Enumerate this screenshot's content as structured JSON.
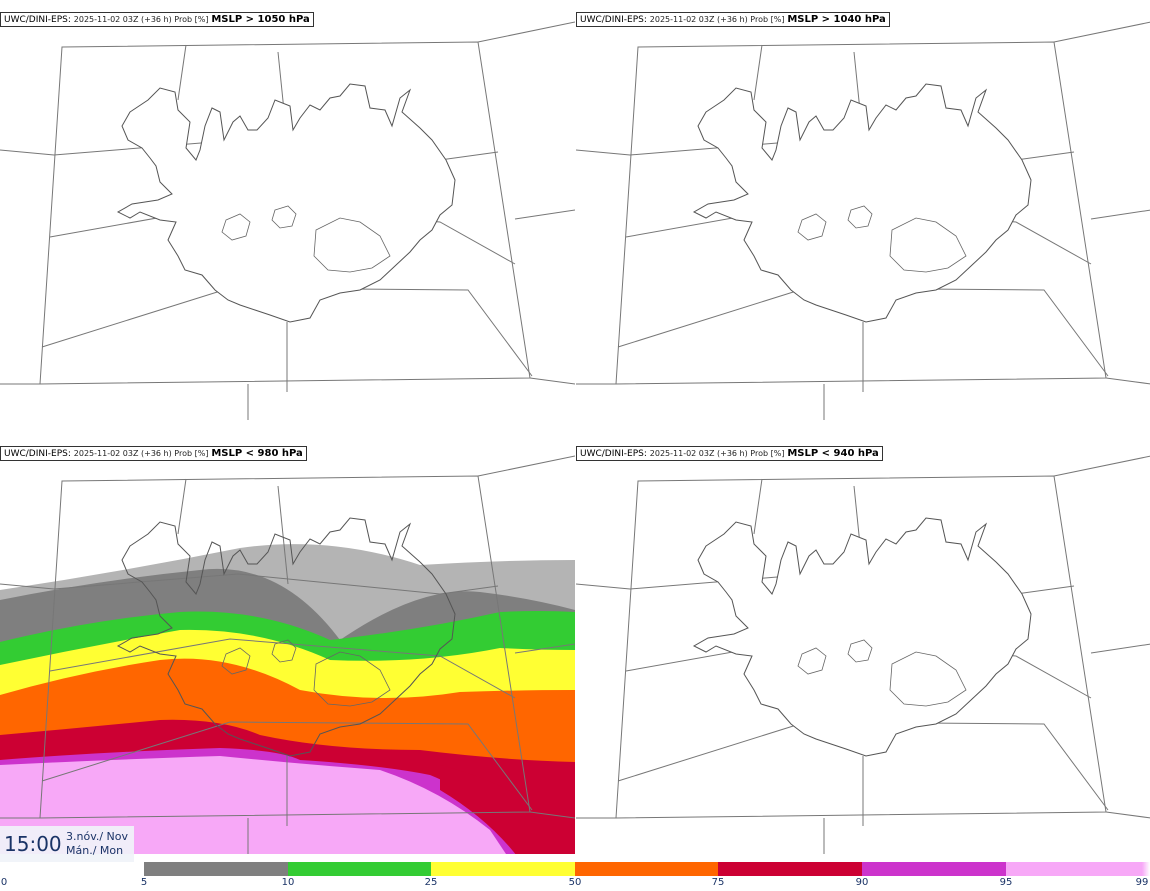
{
  "panels": [
    {
      "source": "UWC/DINI-EPS",
      "run": "2025-11-02 03Z (+36 h) Prob [%]",
      "field": "MSLP > 1050 hPa"
    },
    {
      "source": "UWC/DINI-EPS",
      "run": "2025-11-02 03Z (+36 h) Prob [%]",
      "field": "MSLP > 1040 hPa"
    },
    {
      "source": "UWC/DINI-EPS",
      "run": "2025-11-02 03Z (+36 h) Prob [%]",
      "field": "MSLP < 980 hPa"
    },
    {
      "source": "UWC/DINI-EPS",
      "run": "2025-11-02 03Z (+36 h) Prob [%]",
      "field": "MSLP < 940 hPa"
    }
  ],
  "valid_time": {
    "time": "15:00",
    "date_line1": "3.nóv./ Nov",
    "date_line2": "Mán./ Mon"
  },
  "color_scale": {
    "ticks": [
      "0",
      "5",
      "10",
      "25",
      "50",
      "75",
      "90",
      "95",
      "99"
    ],
    "colors": [
      "#ffffff",
      "#b4b4b4",
      "#7f7f7f",
      "#33cc33",
      "#ffff33",
      "#ff6600",
      "#cc0033",
      "#cc33cc",
      "#f7a8f7"
    ]
  }
}
